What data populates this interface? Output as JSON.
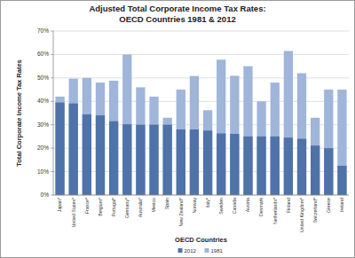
{
  "chart_data": {
    "type": "bar",
    "title": "Adjusted Total Corporate Income Tax Rates:",
    "subtitle": "OECD Countries 1981 & 2012",
    "x_label": "OECD Countries",
    "y_label": "Total Corporate Income Tax Rates",
    "categories": [
      "Japan*",
      "United States*",
      "France*",
      "Belgium*",
      "Portugal*",
      "Germany*",
      "Australia*",
      "Mexico",
      "Spain",
      "New Zealand*",
      "Norway",
      "Italy*",
      "Sweden",
      "Canada",
      "Austria",
      "Denmark",
      "Netherlands*",
      "Finland",
      "United Kingdom*",
      "Switzerland*",
      "Greece",
      "Ireland"
    ],
    "series": [
      {
        "name": "2012",
        "color": "#4f72a8",
        "values": [
          39.5,
          39.1,
          34.4,
          34,
          31.5,
          30.2,
          30,
          30,
          30,
          28,
          28,
          27.5,
          26.3,
          26.1,
          25,
          25,
          25,
          24.5,
          24,
          21.1,
          20,
          12.5
        ]
      },
      {
        "name": "1981",
        "color": "#9fb5da",
        "values": [
          42,
          49.7,
          50,
          48,
          48.8,
          60,
          46,
          42,
          33,
          45,
          50.8,
          36.2,
          57.8,
          50.9,
          55,
          40,
          48,
          61.5,
          52,
          33,
          45,
          45
        ]
      }
    ],
    "ylim": [
      0,
      70
    ],
    "yticks": [
      {
        "value": 0,
        "label": "0%"
      },
      {
        "value": 10,
        "label": "10%"
      },
      {
        "value": 20,
        "label": "20%"
      },
      {
        "value": 30,
        "label": "30%"
      },
      {
        "value": 40,
        "label": "40%"
      },
      {
        "value": 50,
        "label": "50%"
      },
      {
        "value": 60,
        "label": "60%"
      },
      {
        "value": 70,
        "label": "70%"
      }
    ],
    "grid": true,
    "legend": "bottom"
  }
}
